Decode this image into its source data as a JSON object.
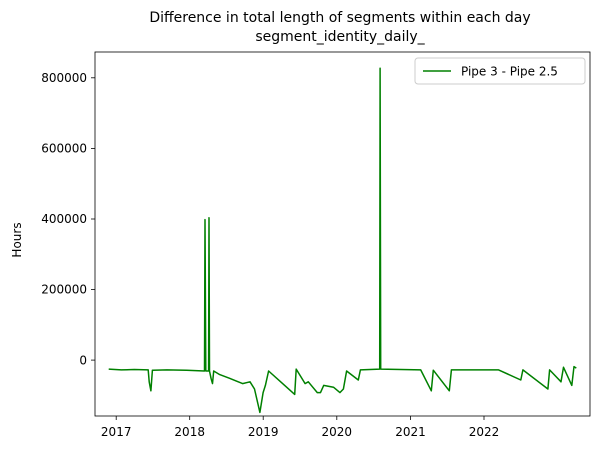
{
  "chart_data": {
    "type": "line",
    "title": "Difference in total length of segments within each day",
    "subtitle": "segment_identity_daily_",
    "xlabel": "",
    "ylabel": "Hours",
    "x_tick_labels": [
      "2017",
      "2018",
      "2019",
      "2020",
      "2021",
      "2022"
    ],
    "y_tick_labels": [
      "0",
      "200000",
      "400000",
      "600000",
      "800000"
    ],
    "y_ticks": [
      0,
      200000,
      400000,
      600000,
      800000
    ],
    "xlim": [
      "2016-10-29",
      "2023-03-05"
    ],
    "ylim": [
      -125000,
      885000
    ],
    "grid": false,
    "legend_position": "top-right",
    "colors": {
      "series": "#008000"
    },
    "series": [
      {
        "name": "Pipe 3 - Pipe 2.5",
        "points": [
          [
            "2017-01-01",
            5000
          ],
          [
            "2017-03-01",
            3000
          ],
          [
            "2017-05-01",
            4000
          ],
          [
            "2017-07-05",
            3000
          ],
          [
            "2017-07-10",
            -30000
          ],
          [
            "2017-07-18",
            -55000
          ],
          [
            "2017-07-25",
            2000
          ],
          [
            "2017-10-01",
            3000
          ],
          [
            "2018-01-01",
            2000
          ],
          [
            "2018-03-26",
            0
          ],
          [
            "2018-03-28",
            420000
          ],
          [
            "2018-04-01",
            0
          ],
          [
            "2018-04-14",
            0
          ],
          [
            "2018-04-16",
            425000
          ],
          [
            "2018-04-18",
            0
          ],
          [
            "2018-04-25",
            -20000
          ],
          [
            "2018-05-02",
            -35000
          ],
          [
            "2018-05-08",
            0
          ],
          [
            "2018-06-05",
            -10000
          ],
          [
            "2018-07-20",
            -20000
          ],
          [
            "2018-09-20",
            -35000
          ],
          [
            "2018-10-25",
            -30000
          ],
          [
            "2018-11-15",
            -50000
          ],
          [
            "2018-12-10",
            -115000
          ],
          [
            "2018-12-25",
            -60000
          ],
          [
            "2019-01-05",
            -40000
          ],
          [
            "2019-01-20",
            0
          ],
          [
            "2019-05-22",
            -65000
          ],
          [
            "2019-05-29",
            5000
          ],
          [
            "2019-07-10",
            -35000
          ],
          [
            "2019-07-25",
            -30000
          ],
          [
            "2019-09-05",
            -60000
          ],
          [
            "2019-09-20",
            -60000
          ],
          [
            "2019-10-05",
            -40000
          ],
          [
            "2019-11-20",
            -45000
          ],
          [
            "2019-12-20",
            -60000
          ],
          [
            "2020-01-05",
            -50000
          ],
          [
            "2020-01-20",
            0
          ],
          [
            "2020-03-15",
            -25000
          ],
          [
            "2020-03-25",
            3000
          ],
          [
            "2020-06-23",
            5000
          ],
          [
            "2020-06-25",
            840000
          ],
          [
            "2020-06-28",
            5000
          ],
          [
            "2020-10-01",
            4000
          ],
          [
            "2021-01-01",
            3000
          ],
          [
            "2021-02-20",
            -55000
          ],
          [
            "2021-03-01",
            2000
          ],
          [
            "2021-05-15",
            -55000
          ],
          [
            "2021-05-25",
            3000
          ],
          [
            "2021-09-01",
            3000
          ],
          [
            "2022-01-01",
            3000
          ],
          [
            "2022-04-15",
            -25000
          ],
          [
            "2022-04-25",
            3000
          ],
          [
            "2022-08-20",
            -50000
          ],
          [
            "2022-08-28",
            3000
          ],
          [
            "2022-10-20",
            -30000
          ],
          [
            "2022-11-01",
            10000
          ],
          [
            "2022-12-10",
            -40000
          ],
          [
            "2022-12-20",
            12000
          ],
          [
            "2022-12-31",
            8000
          ]
        ]
      }
    ]
  }
}
